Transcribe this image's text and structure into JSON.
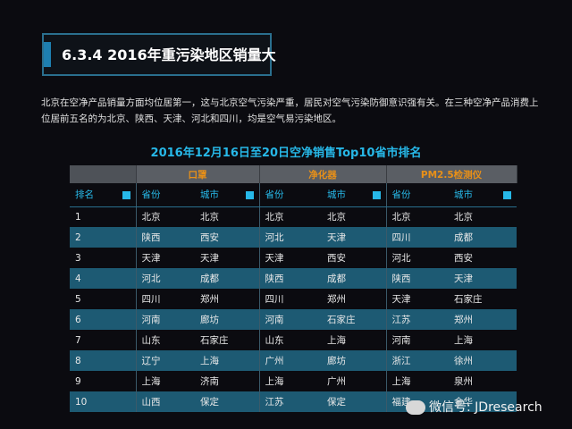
{
  "title": "6.3.4 2016年重污染地区销量大",
  "intro": "北京在空净产品销量方面均位居第一，这与北京空气污染严重，居民对空气污染防御意识强有关。在三种空净产品消费上位居前五名的为北京、陕西、天津、河北和四川，均是空气易污染地区。",
  "table": {
    "title": "2016年12月16日至20日空净销售Top10省市排名",
    "groups": [
      "口罩",
      "净化器",
      "PM2.5检测仪"
    ],
    "headers": [
      "排名",
      "省份",
      "城市",
      "省份",
      "城市",
      "省份",
      "城市"
    ],
    "rows": [
      [
        "1",
        "北京",
        "北京",
        "北京",
        "北京",
        "北京",
        "北京"
      ],
      [
        "2",
        "陕西",
        "西安",
        "河北",
        "天津",
        "四川",
        "成都"
      ],
      [
        "3",
        "天津",
        "天津",
        "天津",
        "西安",
        "河北",
        "西安"
      ],
      [
        "4",
        "河北",
        "成都",
        "陕西",
        "成都",
        "陕西",
        "天津"
      ],
      [
        "5",
        "四川",
        "郑州",
        "四川",
        "郑州",
        "天津",
        "石家庄"
      ],
      [
        "6",
        "河南",
        "廊坊",
        "河南",
        "石家庄",
        "江苏",
        "郑州"
      ],
      [
        "7",
        "山东",
        "石家庄",
        "山东",
        "上海",
        "河南",
        "上海"
      ],
      [
        "8",
        "辽宁",
        "上海",
        "广州",
        "廊坊",
        "浙江",
        "徐州"
      ],
      [
        "9",
        "上海",
        "济南",
        "上海",
        "广州",
        "上海",
        "泉州"
      ],
      [
        "10",
        "山西",
        "保定",
        "江苏",
        "保定",
        "福建",
        "金华"
      ]
    ]
  },
  "watermark": "微信号: JDresearch"
}
